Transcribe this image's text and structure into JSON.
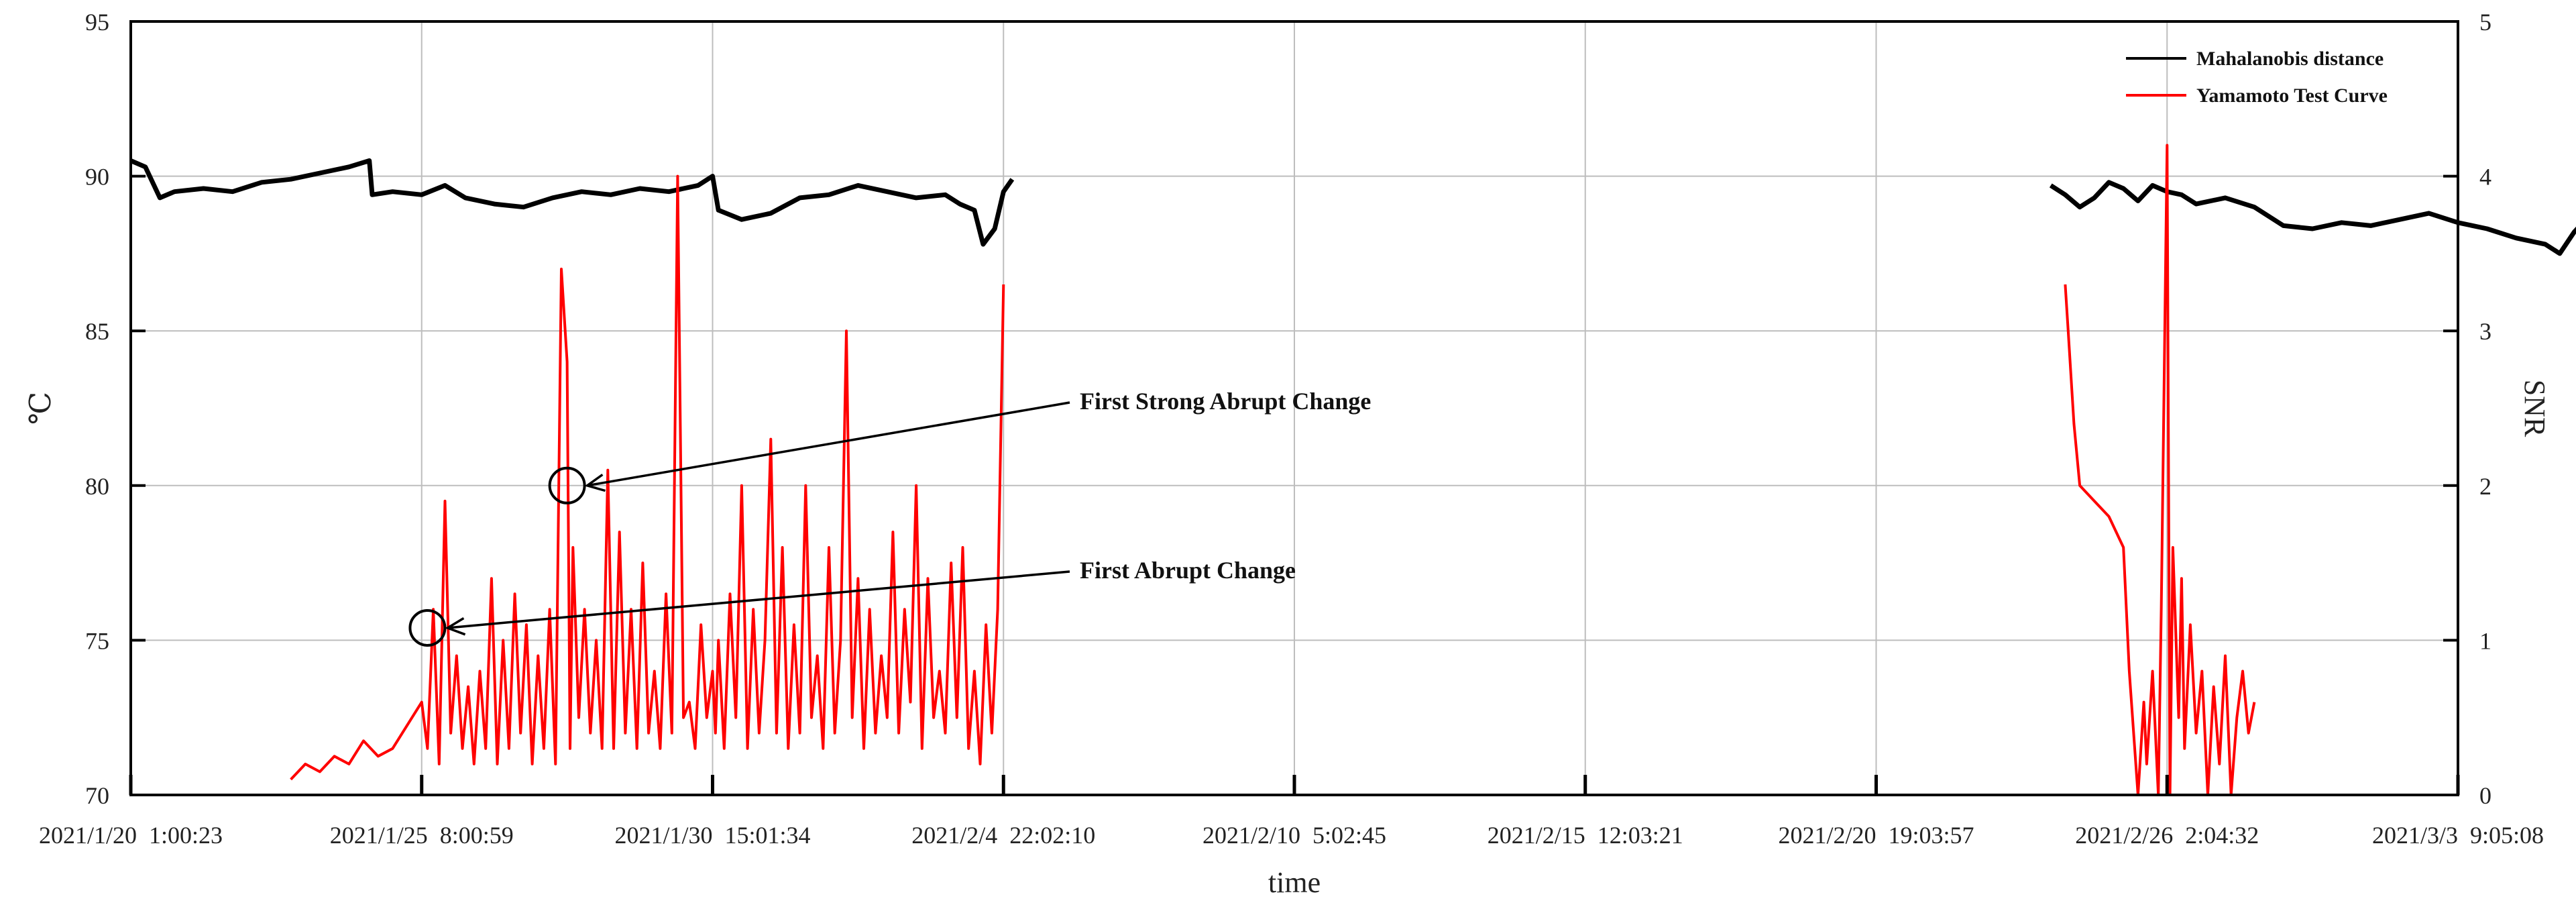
{
  "chart_data": {
    "type": "line",
    "xlabel": "time",
    "ylabel_left": "℃",
    "ylabel_right": "SNR",
    "ylim_left": [
      70,
      95
    ],
    "ylim_right": [
      0,
      5
    ],
    "yticks_left": [
      70,
      75,
      80,
      85,
      90,
      95
    ],
    "yticks_right": [
      0,
      1,
      2,
      3,
      4,
      5
    ],
    "xlim": [
      0,
      7
    ],
    "x_tick_labels": [
      "2021/1/20  1:00:23",
      "2021/1/25  8:00:59",
      "2021/1/30  15:01:34",
      "2021/2/4  22:02:10",
      "2021/2/10  5:02:45",
      "2021/2/15  12:03:21",
      "2021/2/20  19:03:57",
      "2021/2/26  2:04:32",
      "2021/3/3  9:05:08"
    ],
    "grid": true,
    "legend_position": "top-right",
    "series": [
      {
        "name": "Mahalanobis distance",
        "axis": "left",
        "color": "#000000",
        "segments": [
          {
            "x": [
              0.0,
              0.05,
              0.1,
              0.15,
              0.25,
              0.35,
              0.45,
              0.55,
              0.65,
              0.75,
              0.82,
              0.83,
              0.9,
              1.0,
              1.08,
              1.15,
              1.25,
              1.35,
              1.45,
              1.55,
              1.65,
              1.75,
              1.85,
              1.95,
              2.0,
              2.02,
              2.1,
              2.2,
              2.3,
              2.4,
              2.5,
              2.6,
              2.7,
              2.8,
              2.85,
              2.9,
              2.93,
              2.97,
              3.0,
              3.03
            ],
            "y": [
              90.5,
              90.3,
              89.3,
              89.5,
              89.6,
              89.5,
              89.8,
              89.9,
              90.1,
              90.3,
              90.5,
              89.4,
              89.5,
              89.4,
              89.7,
              89.3,
              89.1,
              89.0,
              89.3,
              89.5,
              89.4,
              89.6,
              89.5,
              89.7,
              90.0,
              88.9,
              88.6,
              88.8,
              89.3,
              89.4,
              89.7,
              89.5,
              89.3,
              89.4,
              89.1,
              88.9,
              87.8,
              88.3,
              89.5,
              89.9
            ]
          },
          {
            "x": [
              6.6,
              6.65,
              6.7,
              6.75,
              6.8,
              6.85,
              6.9,
              6.95,
              7.0,
              7.05,
              7.1,
              7.2,
              7.3,
              7.4,
              7.5,
              7.6,
              7.7,
              7.8,
              7.9,
              8.0,
              8.1,
              8.2,
              8.3,
              8.35,
              8.4,
              8.45,
              8.5
            ],
            "y": [
              89.7,
              89.4,
              89.0,
              89.3,
              89.8,
              89.6,
              89.2,
              89.7,
              89.5,
              89.4,
              89.1,
              89.3,
              89.0,
              88.4,
              88.3,
              88.5,
              88.4,
              88.6,
              88.8,
              88.5,
              88.3,
              88.0,
              87.8,
              87.5,
              88.2,
              88.7,
              88.5
            ]
          }
        ]
      },
      {
        "name": "Yamamoto Test Curve",
        "axis": "right",
        "color": "#ff0000",
        "segments": [
          {
            "x": [
              0.55,
              0.6,
              0.65,
              0.7,
              0.75,
              0.8,
              0.85,
              0.9,
              0.95,
              1.0,
              1.02,
              1.04,
              1.06,
              1.08,
              1.1,
              1.12,
              1.14,
              1.16,
              1.18,
              1.2,
              1.22,
              1.24,
              1.26,
              1.28,
              1.3,
              1.32,
              1.34,
              1.36,
              1.38,
              1.4,
              1.42,
              1.44,
              1.46,
              1.48,
              1.5,
              1.51,
              1.52,
              1.54,
              1.56,
              1.58,
              1.6,
              1.62,
              1.64,
              1.66,
              1.68,
              1.7,
              1.72,
              1.74,
              1.76,
              1.78,
              1.8,
              1.82,
              1.84,
              1.86,
              1.88,
              1.9,
              1.92,
              1.94,
              1.96,
              1.98,
              2.0,
              2.01,
              2.02,
              2.04,
              2.06,
              2.08,
              2.1,
              2.12,
              2.14,
              2.16,
              2.18,
              2.2,
              2.22,
              2.24,
              2.26,
              2.28,
              2.3,
              2.32,
              2.34,
              2.36,
              2.38,
              2.4,
              2.42,
              2.44,
              2.46,
              2.48,
              2.5,
              2.52,
              2.54,
              2.56,
              2.58,
              2.6,
              2.62,
              2.64,
              2.66,
              2.68,
              2.7,
              2.72,
              2.74,
              2.76,
              2.78,
              2.8,
              2.82,
              2.84,
              2.86,
              2.88,
              2.9,
              2.92,
              2.94,
              2.96,
              2.98,
              3.0
            ],
            "y": [
              0.1,
              0.2,
              0.15,
              0.25,
              0.2,
              0.35,
              0.25,
              0.3,
              0.45,
              0.6,
              0.3,
              1.2,
              0.2,
              1.9,
              0.4,
              0.9,
              0.3,
              0.7,
              0.2,
              0.8,
              0.3,
              1.4,
              0.2,
              1.0,
              0.3,
              1.3,
              0.4,
              1.1,
              0.2,
              0.9,
              0.3,
              1.2,
              0.2,
              3.4,
              2.8,
              0.3,
              1.6,
              0.5,
              1.2,
              0.4,
              1.0,
              0.3,
              2.1,
              0.3,
              1.7,
              0.4,
              1.2,
              0.3,
              1.5,
              0.4,
              0.8,
              0.3,
              1.3,
              0.4,
              4.0,
              0.5,
              0.6,
              0.3,
              1.1,
              0.5,
              0.8,
              0.4,
              1.0,
              0.3,
              1.3,
              0.5,
              2.0,
              0.3,
              1.2,
              0.4,
              1.0,
              2.3,
              0.4,
              1.6,
              0.3,
              1.1,
              0.4,
              2.0,
              0.5,
              0.9,
              0.3,
              1.6,
              0.4,
              1.0,
              3.0,
              0.5,
              1.4,
              0.3,
              1.2,
              0.4,
              0.9,
              0.5,
              1.7,
              0.4,
              1.2,
              0.6,
              2.0,
              0.3,
              1.4,
              0.5,
              0.8,
              0.4,
              1.5,
              0.5,
              1.6,
              0.3,
              0.8,
              0.2,
              1.1,
              0.4,
              1.2,
              3.3
            ]
          },
          {
            "x": [
              6.65,
              6.66,
              6.68,
              6.7,
              6.75,
              6.8,
              6.85,
              6.87,
              6.9,
              6.92,
              6.93,
              6.95,
              6.97,
              6.98,
              7.0,
              7.01,
              7.02,
              7.04,
              7.05,
              7.06,
              7.08,
              7.1,
              7.12,
              7.14,
              7.16,
              7.18,
              7.2,
              7.22,
              7.24,
              7.26,
              7.28,
              7.3
            ],
            "y": [
              3.3,
              3.0,
              2.4,
              2.0,
              1.9,
              1.8,
              1.6,
              0.8,
              0.0,
              0.6,
              0.2,
              0.8,
              0.0,
              1.2,
              4.2,
              0.0,
              1.6,
              0.5,
              1.4,
              0.3,
              1.1,
              0.4,
              0.8,
              0.0,
              0.7,
              0.2,
              0.9,
              0.0,
              0.5,
              0.8,
              0.4,
              0.6
            ]
          }
        ]
      }
    ],
    "annotations": [
      {
        "text": "First Strong Abrupt Change",
        "target_x": 1.5,
        "target_y_left": 80.0
      },
      {
        "text": "First Abrupt Change",
        "target_x": 1.02,
        "target_y_left": 75.4
      }
    ]
  }
}
